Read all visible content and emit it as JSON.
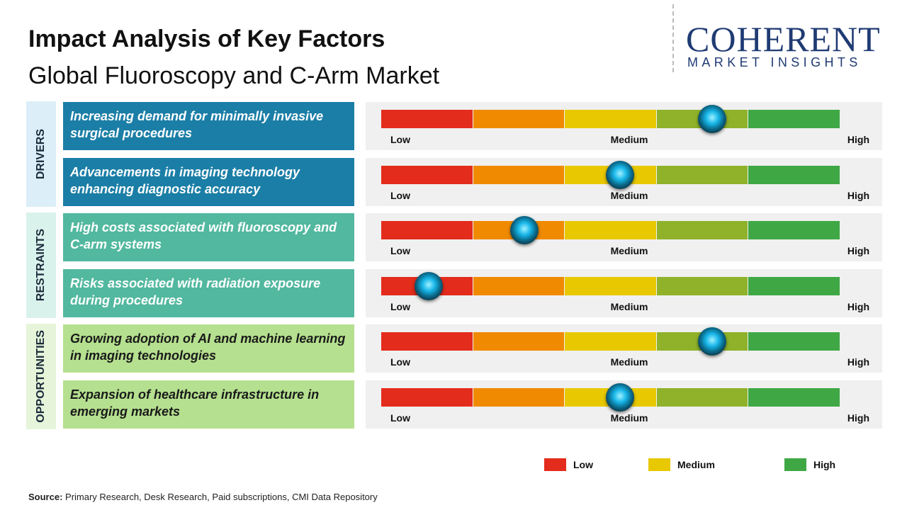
{
  "header": {
    "title": "Impact Analysis of Key Factors",
    "subtitle": "Global Fluoroscopy and C-Arm Market"
  },
  "logo": {
    "name": "COHERENT",
    "tagline": "MARKET INSIGHTS"
  },
  "scale": {
    "colors": [
      "#e32c1c",
      "#f08a00",
      "#e8c800",
      "#8fb22a",
      "#3fa845"
    ],
    "labels": [
      "Low",
      "Medium",
      "High"
    ]
  },
  "groups": [
    {
      "name": "DRIVERS",
      "color": "#1b7ea6",
      "side_color": "#dceef8",
      "text_color": "#ffffff",
      "factors": [
        {
          "text": "Increasing demand for minimally invasive surgical procedures",
          "impact": 3.6
        },
        {
          "text": "Advancements in imaging technology enhancing diagnostic accuracy",
          "impact": 2.6
        }
      ]
    },
    {
      "name": "RESTRAINTS",
      "color": "#52b89f",
      "side_color": "#daf2ec",
      "text_color": "#ffffff",
      "factors": [
        {
          "text": "High costs associated with fluoroscopy and C-arm systems",
          "impact": 1.56
        },
        {
          "text": "Risks associated with radiation exposure during procedures",
          "impact": 0.52
        }
      ]
    },
    {
      "name": "OPPORTUNITIES",
      "color": "#b5e08f",
      "side_color": "#e6f5d9",
      "text_color": "#1a1a1a",
      "factors": [
        {
          "text": "Growing adoption of AI and machine learning in imaging technologies",
          "impact": 3.6
        },
        {
          "text": "Expansion of healthcare infrastructure in emerging markets",
          "impact": 2.6
        }
      ]
    }
  ],
  "legend": [
    {
      "label": "Low",
      "color": "#e32c1c"
    },
    {
      "label": "Medium",
      "color": "#e8c800"
    },
    {
      "label": "High",
      "color": "#3fa845"
    }
  ],
  "source": {
    "label": "Source:",
    "text": "Primary Research, Desk Research, Paid subscriptions, CMI Data Repository"
  }
}
